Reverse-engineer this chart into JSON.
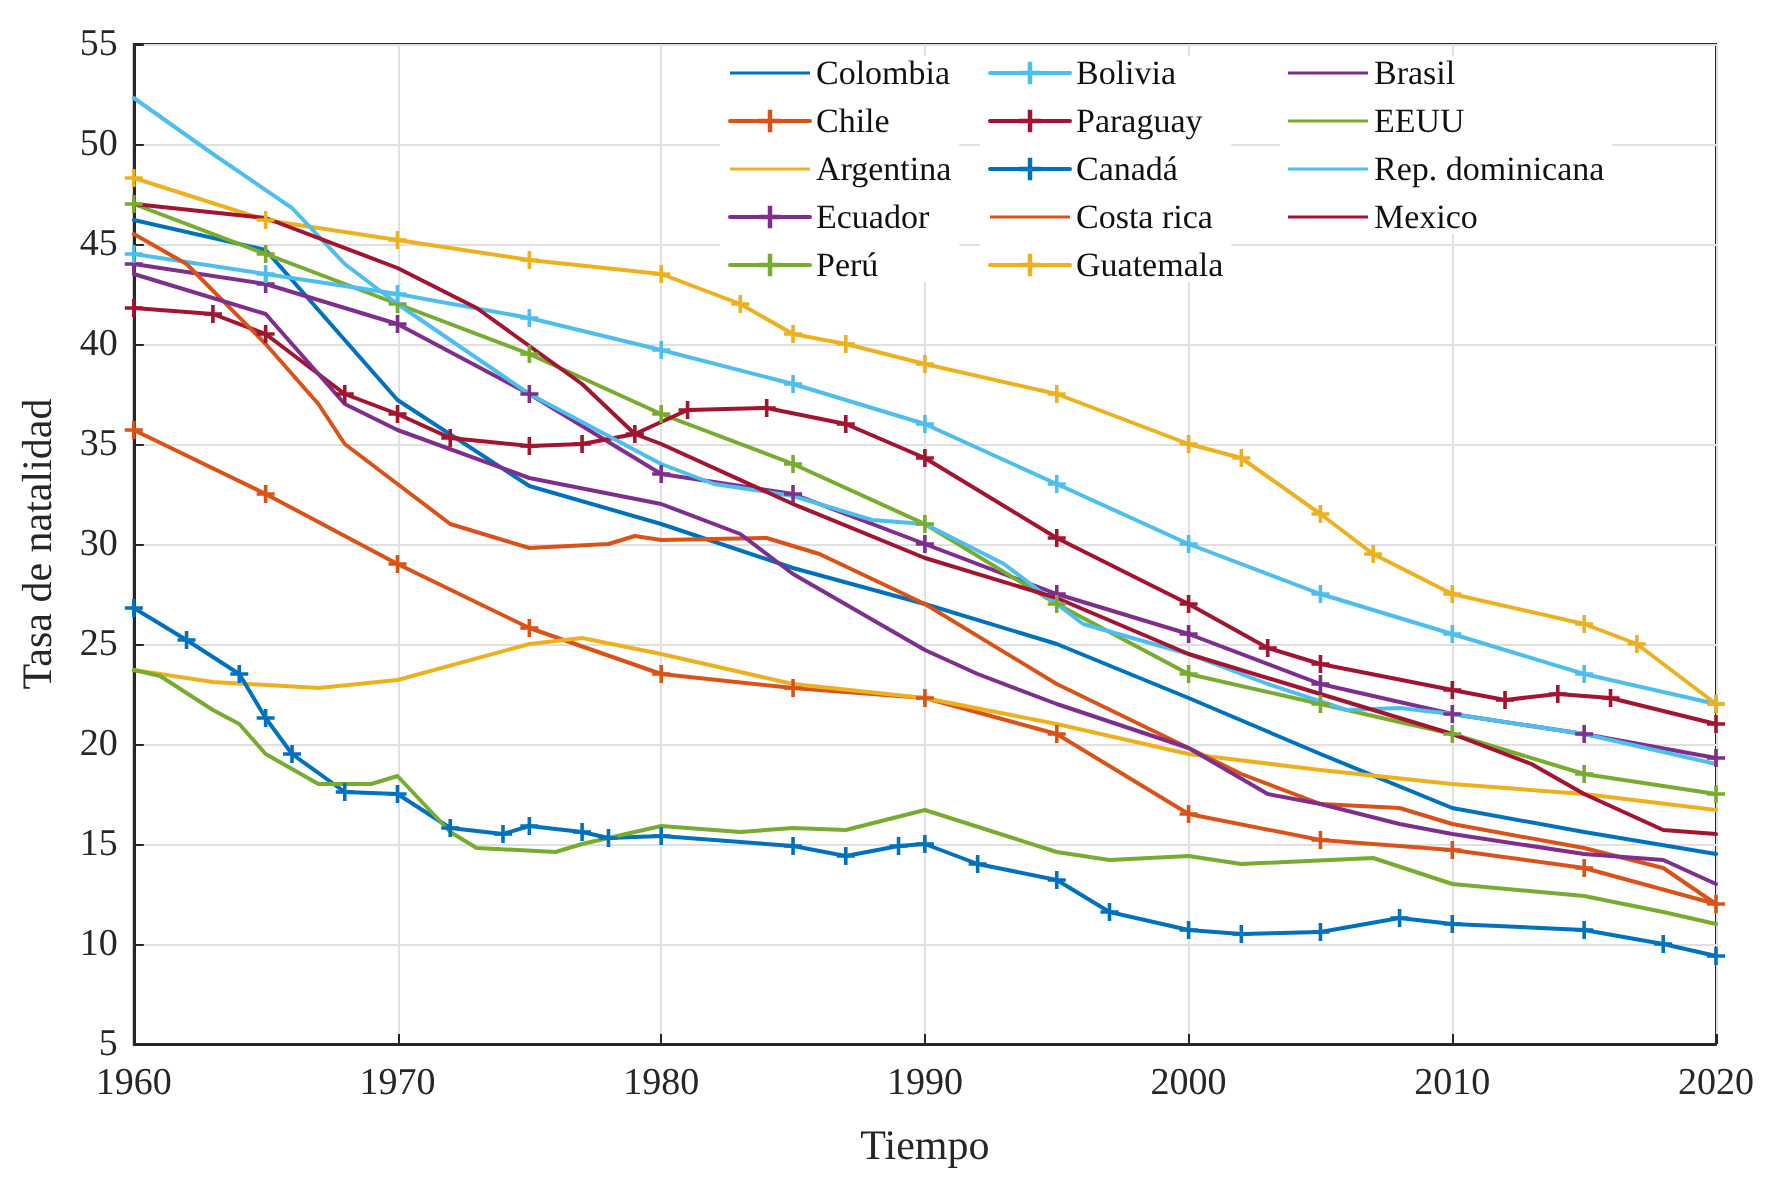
{
  "chart_data": {
    "type": "line",
    "xlabel": "Tiempo",
    "ylabel": "Tasa de natalidad",
    "xlim": [
      1960,
      2020
    ],
    "ylim": [
      5,
      55
    ],
    "xticks": [
      1960,
      1970,
      1980,
      1990,
      2000,
      2010,
      2020
    ],
    "yticks": [
      5,
      10,
      15,
      20,
      25,
      30,
      35,
      40,
      45,
      50,
      55
    ],
    "grid": true,
    "legend": "top right",
    "line_style": "solid",
    "series": [
      {
        "name": "Colombia",
        "color": "#0072bd",
        "marker": "none",
        "x": [
          1960,
          1965,
          1970,
          1975,
          1980,
          1985,
          1990,
          1995,
          2000,
          2005,
          2010,
          2015,
          2020
        ],
        "values": [
          46.2,
          44.7,
          37.2,
          32.9,
          31,
          28.8,
          27,
          25,
          22.3,
          19.5,
          16.8,
          15.6,
          14.5
        ]
      },
      {
        "name": "Chile",
        "color": "#d95319",
        "marker": "cross",
        "x": [
          1960,
          1965,
          1970,
          1975,
          1980,
          1985,
          1990,
          1995,
          2000,
          2005,
          2010,
          2015,
          2020
        ],
        "values": [
          35.7,
          32.5,
          29,
          25.8,
          23.5,
          22.8,
          22.3,
          20.5,
          16.5,
          15.2,
          14.7,
          13.8,
          12
        ]
      },
      {
        "name": "Argentina",
        "color": "#edb120",
        "marker": "none",
        "x": [
          1960,
          1963,
          1967,
          1970,
          1975,
          1977,
          1980,
          1985,
          1990,
          1995,
          2000,
          2005,
          2010,
          2015,
          2020
        ],
        "values": [
          23.7,
          23.1,
          22.8,
          23.2,
          25,
          25.3,
          24.5,
          23,
          22.3,
          21,
          19.5,
          18.7,
          18,
          17.5,
          16.7
        ]
      },
      {
        "name": "Ecuador",
        "color": "#7e2f8e",
        "marker": "cross",
        "x": [
          1960,
          1965,
          1970,
          1975,
          1980,
          1985,
          1990,
          1995,
          2000,
          2005,
          2010,
          2015,
          2020
        ],
        "values": [
          44,
          43,
          41,
          37.5,
          33.5,
          32.5,
          30,
          27.5,
          25.5,
          23,
          21.5,
          20.5,
          19.3
        ]
      },
      {
        "name": "Perú",
        "color": "#77ac30",
        "marker": "cross",
        "x": [
          1960,
          1965,
          1970,
          1975,
          1980,
          1985,
          1990,
          1995,
          2000,
          2005,
          2010,
          2015,
          2020
        ],
        "values": [
          47,
          44.5,
          42,
          39.5,
          36.5,
          34,
          31,
          27,
          23.5,
          22,
          20.5,
          18.5,
          17.5
        ]
      },
      {
        "name": "Bolivia",
        "color": "#4dbeee",
        "marker": "cross",
        "x": [
          1960,
          1965,
          1970,
          1975,
          1980,
          1985,
          1990,
          1995,
          2000,
          2005,
          2010,
          2015,
          2020
        ],
        "values": [
          44.5,
          43.5,
          42.5,
          41.3,
          39.7,
          38,
          36,
          33,
          30,
          27.5,
          25.5,
          23.5,
          22
        ]
      },
      {
        "name": "Paraguay",
        "color": "#a2142f",
        "marker": "cross",
        "x": [
          1960,
          1963,
          1965,
          1968,
          1970,
          1972,
          1975,
          1977,
          1979,
          1981,
          1984,
          1987,
          1990,
          1995,
          2000,
          2003,
          2005,
          2010,
          2012,
          2014,
          2016,
          2020
        ],
        "values": [
          41.8,
          41.5,
          40.5,
          37.5,
          36.5,
          35.3,
          34.9,
          35,
          35.5,
          36.7,
          36.8,
          36,
          34.3,
          30.3,
          27,
          24.8,
          24,
          22.7,
          22.2,
          22.5,
          22.3,
          21
        ]
      },
      {
        "name": "Canadá",
        "color": "#0072bd",
        "marker": "cross",
        "x": [
          1960,
          1962,
          1964,
          1965,
          1966,
          1968,
          1970,
          1972,
          1974,
          1975,
          1977,
          1978,
          1980,
          1985,
          1987,
          1989,
          1990,
          1992,
          1995,
          1997,
          2000,
          2002,
          2005,
          2008,
          2010,
          2015,
          2018,
          2020
        ],
        "values": [
          26.8,
          25.2,
          23.5,
          21.3,
          19.5,
          17.6,
          17.5,
          15.8,
          15.5,
          15.9,
          15.6,
          15.3,
          15.4,
          14.9,
          14.4,
          14.9,
          15,
          14,
          13.2,
          11.6,
          10.7,
          10.5,
          10.6,
          11.3,
          11,
          10.7,
          10,
          9.4
        ]
      },
      {
        "name": "Costa rica",
        "color": "#d95319",
        "marker": "none",
        "x": [
          1960,
          1962,
          1965,
          1967,
          1968,
          1970,
          1972,
          1975,
          1978,
          1979,
          1980,
          1984,
          1986,
          1990,
          1995,
          2000,
          2002,
          2005,
          2008,
          2010,
          2015,
          2018,
          2020
        ],
        "values": [
          45.5,
          44,
          40,
          37,
          35,
          33,
          31,
          29.8,
          30,
          30.4,
          30.2,
          30.3,
          29.5,
          27,
          23,
          19.8,
          18.5,
          17,
          16.8,
          16,
          14.8,
          13.8,
          12
        ]
      },
      {
        "name": "Guatemala",
        "color": "#edb120",
        "marker": "cross",
        "x": [
          1960,
          1965,
          1970,
          1975,
          1980,
          1983,
          1985,
          1987,
          1990,
          1995,
          2000,
          2002,
          2005,
          2007,
          2010,
          2015,
          2017,
          2020
        ],
        "values": [
          48.3,
          46.2,
          45.2,
          44.2,
          43.5,
          42,
          40.5,
          40,
          39,
          37.5,
          35,
          34.3,
          31.5,
          29.5,
          27.5,
          26,
          25,
          22
        ]
      },
      {
        "name": "Brasil",
        "color": "#7e2f8e",
        "marker": "none",
        "x": [
          1960,
          1965,
          1968,
          1970,
          1975,
          1980,
          1983,
          1985,
          1990,
          1992,
          1995,
          2000,
          2003,
          2005,
          2008,
          2010,
          2015,
          2018,
          2020
        ],
        "values": [
          43.5,
          41.5,
          37,
          35.7,
          33.3,
          32,
          30.5,
          28.5,
          24.7,
          23.5,
          22,
          19.8,
          17.5,
          17,
          16,
          15.5,
          14.5,
          14.2,
          13
        ]
      },
      {
        "name": "EEUU",
        "color": "#77ac30",
        "marker": "none",
        "x": [
          1960,
          1961,
          1963,
          1964,
          1965,
          1967,
          1969,
          1970,
          1971,
          1972,
          1973,
          1976,
          1977,
          1980,
          1983,
          1985,
          1987,
          1990,
          1995,
          1997,
          2000,
          2002,
          2007,
          2010,
          2015,
          2018,
          2020
        ],
        "values": [
          23.7,
          23.4,
          21.7,
          21,
          19.5,
          18,
          18,
          18.4,
          17,
          15.6,
          14.8,
          14.6,
          15,
          15.9,
          15.6,
          15.8,
          15.7,
          16.7,
          14.6,
          14.2,
          14.4,
          14,
          14.3,
          13,
          12.4,
          11.6,
          11
        ]
      },
      {
        "name": "Rep. dominicana",
        "color": "#4dbeee",
        "marker": "none",
        "x": [
          1960,
          1963,
          1966,
          1968,
          1970,
          1975,
          1980,
          1982,
          1985,
          1988,
          1990,
          1993,
          1996,
          2000,
          2003,
          2006,
          2008,
          2010,
          2015,
          2020
        ],
        "values": [
          52.3,
          49.5,
          46.8,
          44,
          42,
          37.5,
          34,
          33,
          32.4,
          31.2,
          31,
          29,
          26,
          24.5,
          23,
          21.7,
          21.8,
          21.5,
          20.5,
          19
        ]
      },
      {
        "name": "Mexico",
        "color": "#a2142f",
        "marker": "none",
        "x": [
          1960,
          1965,
          1970,
          1973,
          1977,
          1979,
          1980,
          1985,
          1990,
          1995,
          2000,
          2005,
          2010,
          2013,
          2015,
          2018,
          2020
        ],
        "values": [
          47,
          46.3,
          43.8,
          41.8,
          38,
          35.5,
          35,
          32,
          29.3,
          27.3,
          24.5,
          22.5,
          20.5,
          19,
          17.5,
          15.7,
          15.5
        ]
      }
    ]
  }
}
